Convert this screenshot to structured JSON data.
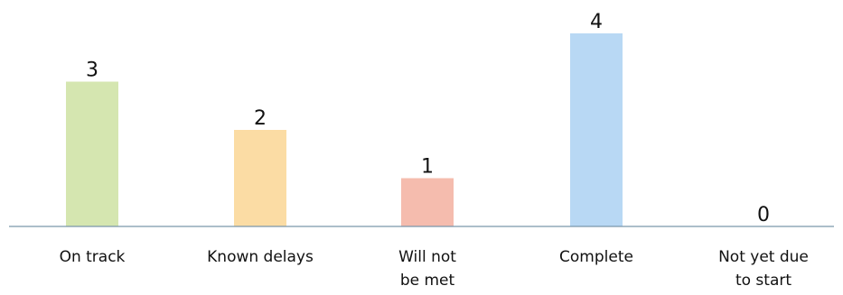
{
  "chart_data": {
    "type": "bar",
    "categories": [
      "On track",
      "Known delays",
      "Will not be met",
      "Complete",
      "Not yet due to start"
    ],
    "category_label_lines": [
      [
        "On track"
      ],
      [
        "Known delays"
      ],
      [
        "Will not",
        "be met"
      ],
      [
        "Complete"
      ],
      [
        "Not yet due",
        "to start"
      ]
    ],
    "values": [
      3,
      2,
      1,
      4,
      0
    ],
    "value_labels": [
      "3",
      "2",
      "1",
      "4",
      "0"
    ],
    "colors": [
      "#d5e6b0",
      "#fbdca4",
      "#f5bcae",
      "#b8d8f4",
      "#e0e0e0"
    ],
    "axis_color": "#7a96ab",
    "ylim": [
      0,
      4
    ],
    "grid": false,
    "legend": "none",
    "title": "",
    "xlabel": "",
    "ylabel": ""
  }
}
